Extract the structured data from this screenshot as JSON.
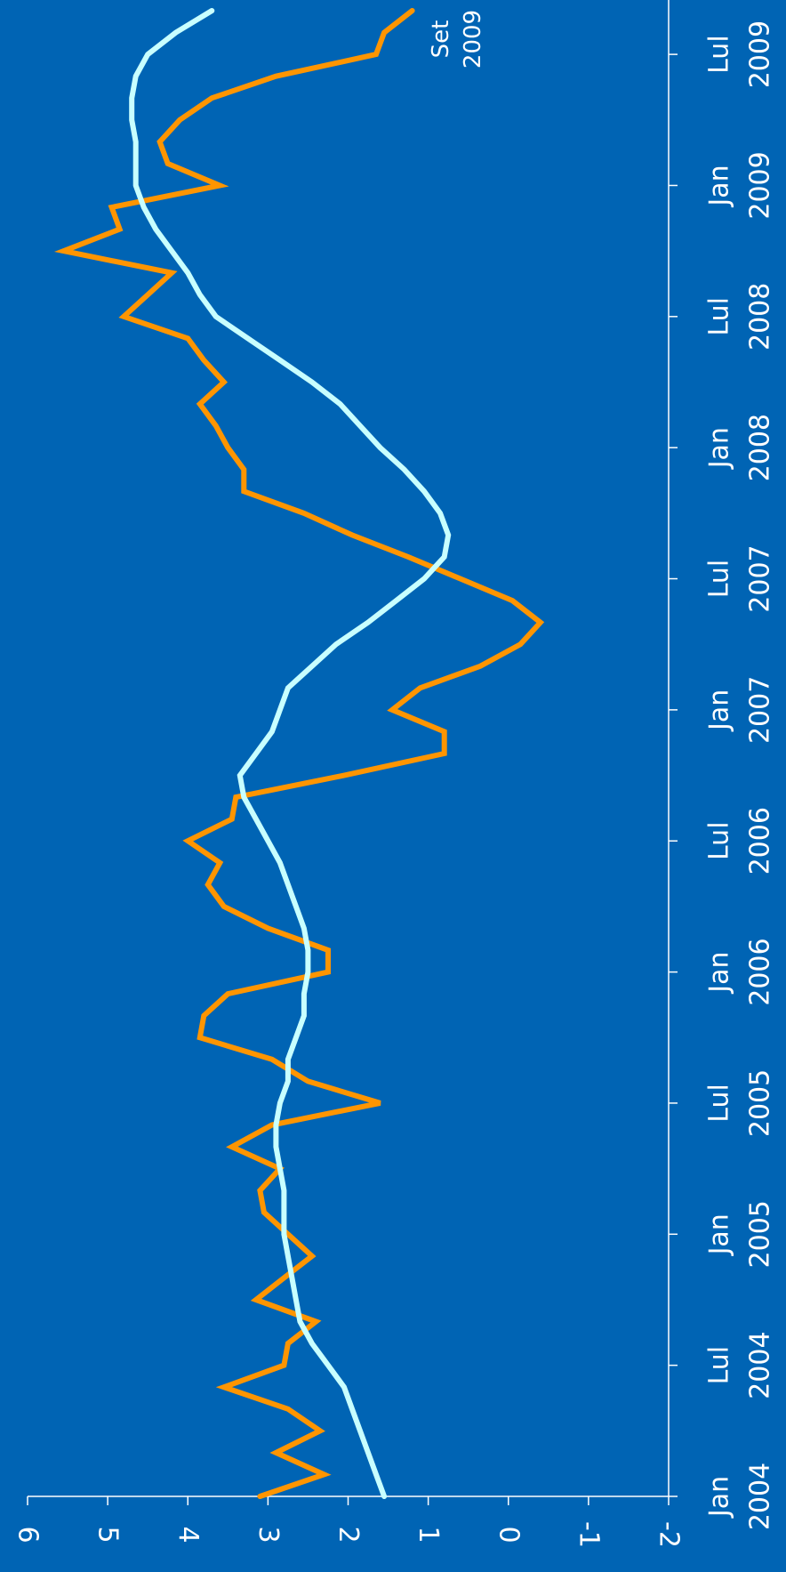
{
  "chart_data": {
    "type": "line",
    "title": "",
    "xlabel": "",
    "ylabel": "",
    "orientation": "rotated-90-clockwise",
    "ylim": [
      -2,
      6
    ],
    "yticks": [
      "6",
      "5",
      "4",
      "3",
      "2",
      "1",
      "0",
      "-1",
      "-2"
    ],
    "xlim": [
      "2004-01",
      "2009-09"
    ],
    "x_tick_labels": [
      {
        "month": "Jan",
        "year": "2004",
        "date": "2004-01"
      },
      {
        "month": "Lul",
        "year": "2004",
        "date": "2004-07"
      },
      {
        "month": "Jan",
        "year": "2005",
        "date": "2005-01"
      },
      {
        "month": "Lul",
        "year": "2005",
        "date": "2005-07"
      },
      {
        "month": "Jan",
        "year": "2006",
        "date": "2006-01"
      },
      {
        "month": "Lul",
        "year": "2006",
        "date": "2006-07"
      },
      {
        "month": "Jan",
        "year": "2007",
        "date": "2007-01"
      },
      {
        "month": "Lul",
        "year": "2007",
        "date": "2007-07"
      },
      {
        "month": "Jan",
        "year": "2008",
        "date": "2008-01"
      },
      {
        "month": "Lul",
        "year": "2008",
        "date": "2008-07"
      },
      {
        "month": "Jan",
        "year": "2009",
        "date": "2009-01"
      },
      {
        "month": "Lul",
        "year": "2009",
        "date": "2009-07"
      }
    ],
    "grid": false,
    "legend": "none",
    "annotations": [
      {
        "text": "Set",
        "date": "2009-09"
      },
      {
        "text": "2009",
        "date": "2009-09"
      }
    ],
    "series": [
      {
        "color": "#ff9500",
        "points": [
          [
            "2004-01",
            3.1
          ],
          [
            "2004-02",
            2.3
          ],
          [
            "2004-03",
            2.9
          ],
          [
            "2004-04",
            2.35
          ],
          [
            "2004-05",
            2.75
          ],
          [
            "2004-06",
            3.55
          ],
          [
            "2004-07",
            2.8
          ],
          [
            "2004-08",
            2.75
          ],
          [
            "2004-09",
            2.4
          ],
          [
            "2004-10",
            3.15
          ],
          [
            "2004-11",
            2.8
          ],
          [
            "2004-12",
            2.45
          ],
          [
            "2005-01",
            2.75
          ],
          [
            "2005-02",
            3.05
          ],
          [
            "2005-03",
            3.1
          ],
          [
            "2005-04",
            2.85
          ],
          [
            "2005-05",
            3.45
          ],
          [
            "2005-06",
            2.95
          ],
          [
            "2005-07",
            1.6
          ],
          [
            "2005-08",
            2.5
          ],
          [
            "2005-09",
            2.95
          ],
          [
            "2005-10",
            3.85
          ],
          [
            "2005-11",
            3.8
          ],
          [
            "2005-12",
            3.5
          ],
          [
            "2006-01",
            2.25
          ],
          [
            "2006-02",
            2.25
          ],
          [
            "2006-03",
            3.0
          ],
          [
            "2006-04",
            3.55
          ],
          [
            "2006-05",
            3.75
          ],
          [
            "2006-06",
            3.6
          ],
          [
            "2006-07",
            4.0
          ],
          [
            "2006-08",
            3.45
          ],
          [
            "2006-09",
            3.4
          ],
          [
            "2006-10",
            2.05
          ],
          [
            "2006-11",
            0.8
          ],
          [
            "2006-12",
            0.8
          ],
          [
            "2007-01",
            1.45
          ],
          [
            "2007-02",
            1.1
          ],
          [
            "2007-03",
            0.35
          ],
          [
            "2007-04",
            -0.15
          ],
          [
            "2007-05",
            -0.4
          ],
          [
            "2007-06",
            -0.05
          ],
          [
            "2007-07",
            0.6
          ],
          [
            "2007-08",
            1.25
          ],
          [
            "2007-09",
            1.95
          ],
          [
            "2007-10",
            2.55
          ],
          [
            "2007-11",
            3.3
          ],
          [
            "2007-12",
            3.3
          ],
          [
            "2008-01",
            3.5
          ],
          [
            "2008-02",
            3.65
          ],
          [
            "2008-03",
            3.85
          ],
          [
            "2008-04",
            3.55
          ],
          [
            "2008-05",
            3.8
          ],
          [
            "2008-06",
            4.0
          ],
          [
            "2008-07",
            4.8
          ],
          [
            "2008-08",
            4.5
          ],
          [
            "2008-09",
            4.2
          ],
          [
            "2008-10",
            5.55
          ],
          [
            "2008-11",
            4.85
          ],
          [
            "2008-12",
            4.95
          ],
          [
            "2009-01",
            3.6
          ],
          [
            "2009-02",
            4.25
          ],
          [
            "2009-03",
            4.35
          ],
          [
            "2009-04",
            4.1
          ],
          [
            "2009-05",
            3.7
          ],
          [
            "2009-06",
            2.9
          ],
          [
            "2009-07",
            1.65
          ],
          [
            "2009-08",
            1.55
          ],
          [
            "2009-09",
            1.2
          ]
        ]
      },
      {
        "color": "#c8ffff",
        "points": [
          [
            "2004-01",
            1.55
          ],
          [
            "2004-02",
            1.65
          ],
          [
            "2004-03",
            1.75
          ],
          [
            "2004-04",
            1.85
          ],
          [
            "2004-05",
            1.95
          ],
          [
            "2004-06",
            2.05
          ],
          [
            "2004-07",
            2.25
          ],
          [
            "2004-08",
            2.45
          ],
          [
            "2004-09",
            2.6
          ],
          [
            "2004-10",
            2.65
          ],
          [
            "2004-11",
            2.7
          ],
          [
            "2004-12",
            2.75
          ],
          [
            "2005-01",
            2.8
          ],
          [
            "2005-02",
            2.8
          ],
          [
            "2005-03",
            2.8
          ],
          [
            "2005-04",
            2.85
          ],
          [
            "2005-05",
            2.9
          ],
          [
            "2005-06",
            2.9
          ],
          [
            "2005-07",
            2.85
          ],
          [
            "2005-08",
            2.75
          ],
          [
            "2005-09",
            2.75
          ],
          [
            "2005-10",
            2.65
          ],
          [
            "2005-11",
            2.55
          ],
          [
            "2005-12",
            2.55
          ],
          [
            "2006-01",
            2.5
          ],
          [
            "2006-02",
            2.5
          ],
          [
            "2006-03",
            2.55
          ],
          [
            "2006-04",
            2.65
          ],
          [
            "2006-05",
            2.75
          ],
          [
            "2006-06",
            2.85
          ],
          [
            "2006-07",
            3.0
          ],
          [
            "2006-08",
            3.15
          ],
          [
            "2006-09",
            3.3
          ],
          [
            "2006-10",
            3.35
          ],
          [
            "2006-11",
            3.15
          ],
          [
            "2006-12",
            2.95
          ],
          [
            "2007-01",
            2.85
          ],
          [
            "2007-02",
            2.75
          ],
          [
            "2007-03",
            2.45
          ],
          [
            "2007-04",
            2.15
          ],
          [
            "2007-05",
            1.75
          ],
          [
            "2007-06",
            1.4
          ],
          [
            "2007-07",
            1.05
          ],
          [
            "2007-08",
            0.8
          ],
          [
            "2007-09",
            0.75
          ],
          [
            "2007-10",
            0.85
          ],
          [
            "2007-11",
            1.05
          ],
          [
            "2007-12",
            1.3
          ],
          [
            "2008-01",
            1.6
          ],
          [
            "2008-02",
            1.85
          ],
          [
            "2008-03",
            2.1
          ],
          [
            "2008-04",
            2.45
          ],
          [
            "2008-05",
            2.85
          ],
          [
            "2008-06",
            3.25
          ],
          [
            "2008-07",
            3.65
          ],
          [
            "2008-08",
            3.85
          ],
          [
            "2008-09",
            4.0
          ],
          [
            "2008-10",
            4.2
          ],
          [
            "2008-11",
            4.4
          ],
          [
            "2008-12",
            4.55
          ],
          [
            "2009-01",
            4.65
          ],
          [
            "2009-02",
            4.65
          ],
          [
            "2009-03",
            4.65
          ],
          [
            "2009-04",
            4.7
          ],
          [
            "2009-05",
            4.7
          ],
          [
            "2009-06",
            4.65
          ],
          [
            "2009-07",
            4.5
          ],
          [
            "2009-08",
            4.15
          ],
          [
            "2009-09",
            3.7
          ]
        ]
      }
    ]
  }
}
